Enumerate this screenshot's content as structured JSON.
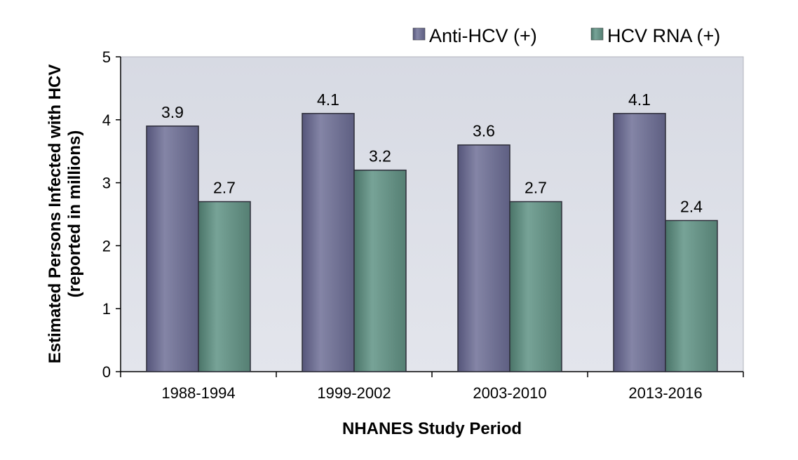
{
  "chart_data": {
    "type": "bar",
    "title": "",
    "categories": [
      "1988-1994",
      "1999-2002",
      "2003-2010",
      "2013-2016"
    ],
    "series": [
      {
        "name": "Anti-HCV (+)",
        "values": [
          3.9,
          4.1,
          3.6,
          4.1
        ],
        "color": "#7a7a9a"
      },
      {
        "name": "HCV RNA (+)",
        "values": [
          2.7,
          3.2,
          2.7,
          2.4
        ],
        "color": "#6b9488"
      }
    ],
    "data_labels": [
      [
        "3.9",
        "4.1",
        "3.6",
        "4.1"
      ],
      [
        "2.7",
        "3.2",
        "2.7",
        "2.4"
      ]
    ],
    "xlabel": "NHANES Study Period",
    "ylabel_lines": [
      "Estimated Persons Infected with HCV",
      "(reported in millions)"
    ],
    "ylim": [
      0,
      5
    ],
    "yticks": [
      "0",
      "1",
      "2",
      "3",
      "4",
      "5"
    ],
    "legend_position": "top-right",
    "plot_background": "#d9dce4"
  }
}
